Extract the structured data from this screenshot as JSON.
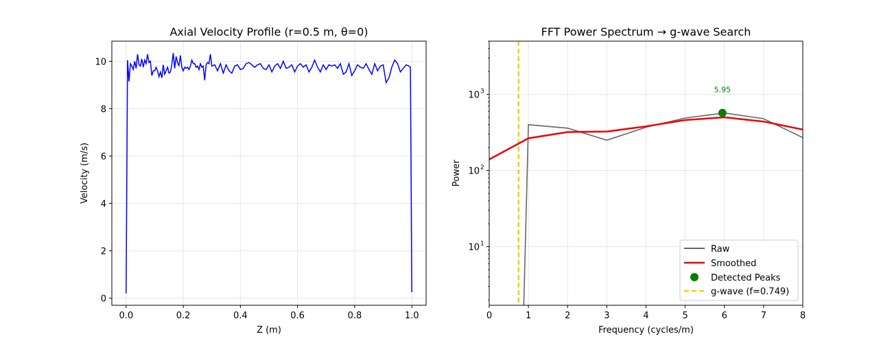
{
  "chart_data": [
    {
      "type": "line",
      "title": "Axial Velocity Profile (r=0.5 m, θ=0)",
      "xlabel": "Z (m)",
      "ylabel": "Velocity (m/s)",
      "xlim": [
        -0.05,
        1.05
      ],
      "ylim": [
        -0.3,
        10.85
      ],
      "xticks": [
        0.0,
        0.2,
        0.4,
        0.6,
        0.8,
        1.0
      ],
      "xtick_labels": [
        "0.0",
        "0.2",
        "0.4",
        "0.6",
        "0.8",
        "1.0"
      ],
      "yticks": [
        0,
        2,
        4,
        6,
        8,
        10
      ],
      "ytick_labels": [
        "0",
        "2",
        "4",
        "6",
        "8",
        "10"
      ],
      "grid": true,
      "color": "#0000ff",
      "series": [
        {
          "x": [
            0.0,
            0.005,
            0.01,
            0.015,
            0.02,
            0.025,
            0.03,
            0.035,
            0.04,
            0.045,
            0.05,
            0.055,
            0.06,
            0.065,
            0.07,
            0.075,
            0.08,
            0.085,
            0.09,
            0.095,
            0.1,
            0.105,
            0.11,
            0.115,
            0.12,
            0.125,
            0.13,
            0.135,
            0.14,
            0.145,
            0.15,
            0.155,
            0.16,
            0.165,
            0.17,
            0.175,
            0.18,
            0.185,
            0.19,
            0.195,
            0.2,
            0.205,
            0.21,
            0.215,
            0.22,
            0.225,
            0.23,
            0.235,
            0.24,
            0.245,
            0.25,
            0.255,
            0.26,
            0.265,
            0.27,
            0.275,
            0.28,
            0.285,
            0.29,
            0.295,
            0.3,
            0.31,
            0.32,
            0.33,
            0.34,
            0.35,
            0.36,
            0.37,
            0.38,
            0.39,
            0.4,
            0.41,
            0.42,
            0.43,
            0.44,
            0.45,
            0.46,
            0.47,
            0.48,
            0.49,
            0.5,
            0.51,
            0.52,
            0.53,
            0.54,
            0.55,
            0.56,
            0.57,
            0.58,
            0.59,
            0.6,
            0.61,
            0.62,
            0.63,
            0.64,
            0.65,
            0.66,
            0.67,
            0.68,
            0.69,
            0.7,
            0.71,
            0.72,
            0.73,
            0.74,
            0.75,
            0.76,
            0.77,
            0.78,
            0.79,
            0.8,
            0.81,
            0.82,
            0.83,
            0.84,
            0.85,
            0.86,
            0.87,
            0.88,
            0.89,
            0.9,
            0.91,
            0.92,
            0.93,
            0.94,
            0.95,
            0.96,
            0.97,
            0.98,
            0.99,
            0.995,
            1.0
          ],
          "y": [
            0.2,
            10.05,
            9.15,
            9.9,
            9.8,
            9.65,
            10.0,
            9.7,
            10.3,
            9.85,
            9.8,
            10.1,
            9.75,
            10.05,
            9.9,
            10.3,
            9.95,
            10.0,
            9.4,
            9.6,
            9.6,
            9.75,
            9.6,
            9.35,
            9.55,
            9.3,
            9.85,
            9.45,
            9.6,
            9.75,
            9.5,
            9.55,
            9.85,
            10.35,
            9.7,
            10.2,
            9.95,
            9.8,
            10.25,
            9.75,
            9.6,
            9.75,
            9.7,
            9.75,
            9.65,
            9.8,
            10.05,
            9.9,
            9.9,
            9.75,
            9.8,
            9.65,
            9.9,
            9.75,
            9.8,
            9.2,
            9.85,
            9.95,
            9.9,
            10.3,
            9.8,
            9.85,
            9.6,
            9.9,
            9.5,
            9.85,
            9.6,
            9.5,
            9.8,
            9.85,
            9.65,
            9.7,
            9.9,
            9.95,
            9.85,
            9.75,
            9.85,
            9.9,
            9.7,
            9.65,
            9.85,
            9.55,
            9.8,
            9.9,
            9.7,
            10.0,
            9.7,
            9.75,
            9.85,
            9.55,
            9.8,
            9.9,
            9.75,
            9.85,
            9.55,
            9.75,
            10.05,
            9.75,
            9.55,
            9.85,
            9.65,
            9.85,
            9.8,
            9.85,
            9.7,
            9.9,
            9.45,
            9.55,
            9.9,
            9.4,
            9.6,
            9.85,
            9.75,
            9.7,
            9.9,
            9.65,
            9.45,
            9.9,
            9.6,
            9.8,
            9.85,
            9.1,
            9.3,
            9.75,
            10.05,
            9.9,
            9.55,
            9.7,
            9.85,
            9.8,
            9.75,
            0.25
          ]
        }
      ]
    },
    {
      "type": "line",
      "title": "FFT Power Spectrum → g-wave Search",
      "xlabel": "Frequency (cycles/m)",
      "ylabel": "Power",
      "xlim": [
        0,
        8
      ],
      "ylim": [
        1.7,
        5000
      ],
      "yscale": "log",
      "xticks": [
        0,
        1,
        2,
        3,
        4,
        5,
        6,
        7,
        8
      ],
      "xtick_labels": [
        "0",
        "1",
        "2",
        "3",
        "4",
        "5",
        "6",
        "7",
        "8"
      ],
      "yticks": [
        10,
        100,
        1000
      ],
      "ytick_labels": [
        {
          "base": "10",
          "exp": "1"
        },
        {
          "base": "10",
          "exp": "2"
        },
        {
          "base": "10",
          "exp": "3"
        }
      ],
      "grid": true,
      "legend_placement": "lower-right",
      "series": [
        {
          "name": "Raw",
          "color": "#666666",
          "x": [
            0.87,
            1,
            2,
            3,
            4,
            5,
            6,
            7,
            8
          ],
          "y": [
            1.0,
            400,
            360,
            250,
            370,
            490,
            570,
            480,
            270
          ]
        },
        {
          "name": "Smoothed",
          "color": "#ee0000",
          "x": [
            0,
            1,
            2,
            3,
            4,
            5,
            6,
            7,
            8
          ],
          "y": [
            140,
            265,
            320,
            325,
            380,
            460,
            500,
            440,
            345
          ]
        },
        {
          "name": "Detected Peaks",
          "color": "#008000",
          "x": [
            5.95
          ],
          "y": [
            570
          ],
          "labels": [
            "5.95"
          ]
        },
        {
          "name": "g-wave (f=0.749)",
          "color": "#ffcc00",
          "x": [
            0.749
          ]
        }
      ]
    }
  ]
}
